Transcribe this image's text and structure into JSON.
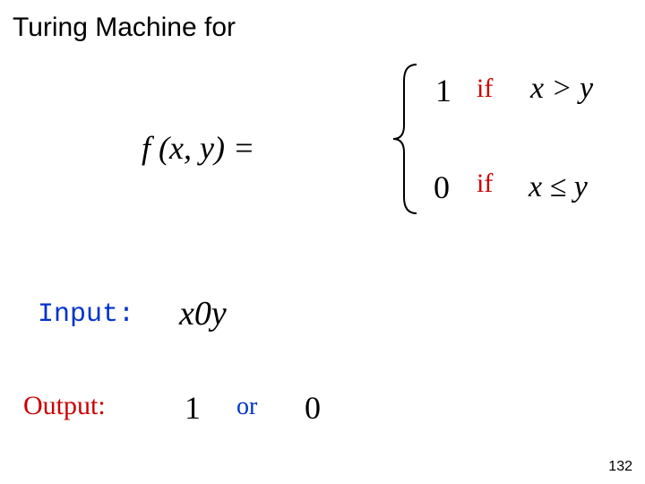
{
  "title": "Turing Machine for",
  "function": {
    "lhs_html": "<span style='font-style:italic'>f</span> (<span style='font-style:italic'>x</span>, <span style='font-style:italic'>y</span>) =",
    "case1": {
      "value": "1",
      "if": "if",
      "if_color": "#cc0000",
      "cond_html": "<span style='font-style:italic'>x</span> &gt; <span style='font-style:italic'>y</span>"
    },
    "case2": {
      "value": "0",
      "if": "if",
      "if_color": "#cc0000",
      "cond_html": "<span style='font-style:italic'>x</span> ≤ <span style='font-style:italic'>y</span>"
    }
  },
  "input": {
    "label": "Input:",
    "label_color": "#0033cc",
    "value_html": "<span style='font-style:italic'>x</span>0<span style='font-style:italic'>y</span>"
  },
  "output": {
    "label": "Output:",
    "label_color": "#cc0000",
    "val1": "1",
    "or": "or",
    "or_color": "#0033cc",
    "val0": "0"
  },
  "page_number": "132",
  "colors": {
    "background": "#ffffff",
    "text": "#000000"
  }
}
